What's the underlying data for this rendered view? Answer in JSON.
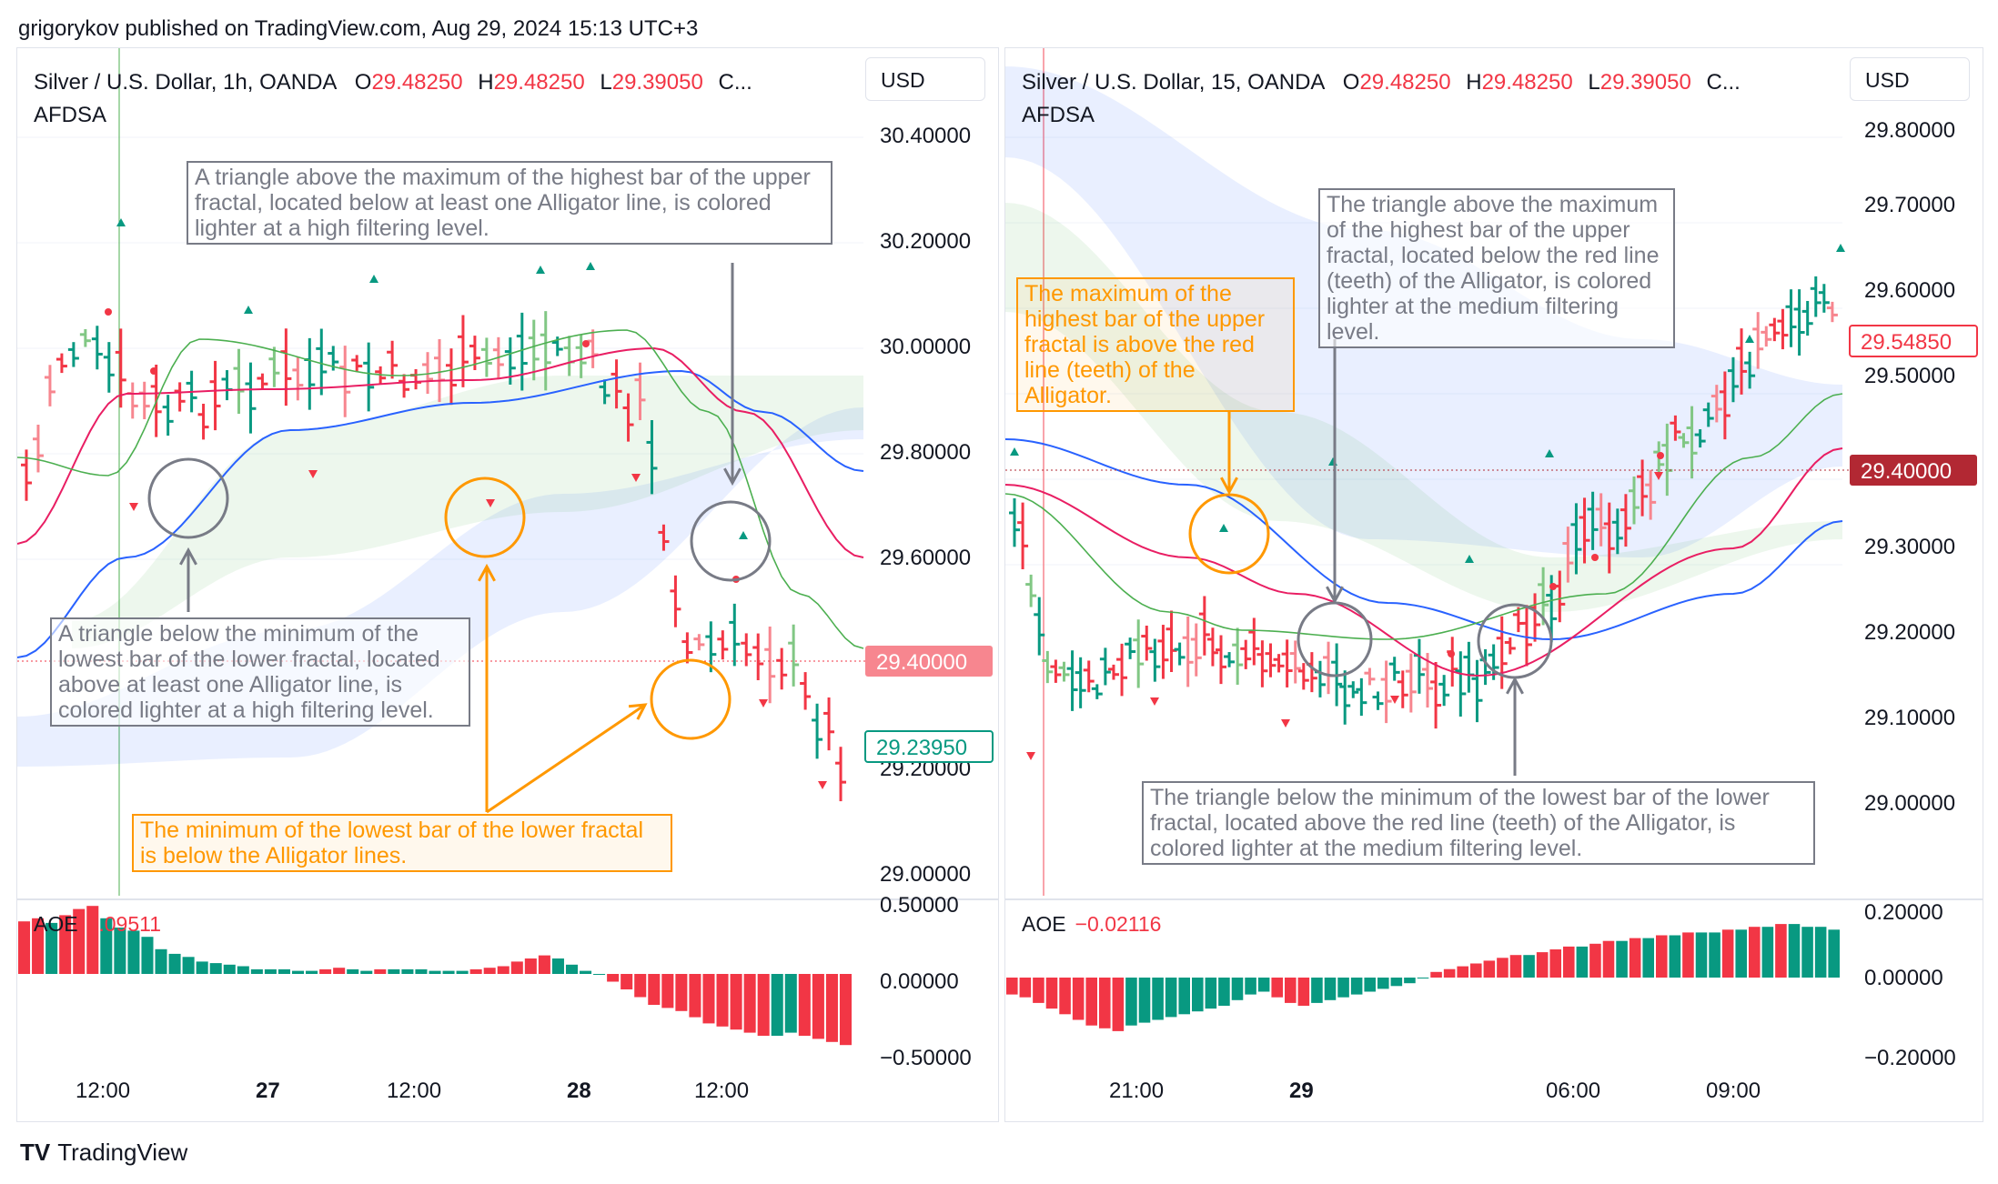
{
  "header": "grigorykov published on TradingView.com, Aug 29, 2024 15:13 UTC+3",
  "footer": {
    "logo_mark": "TV",
    "brand": "TradingView"
  },
  "colors": {
    "up": "#089981",
    "down": "#f23645",
    "jaw": "#2962ff",
    "teeth": "#e91e63",
    "lips": "#4caf50",
    "annotation_gray": "#787b86",
    "annotation_orange": "#ff9800"
  },
  "left": {
    "title": {
      "symbol": "Silver / U.S. Dollar, 1h, OANDA",
      "o_lbl": "O",
      "o": "29.48250",
      "h_lbl": "H",
      "h": "29.48250",
      "l_lbl": "L",
      "l": "29.39050",
      "c_lbl": "C...",
      "indicator": "AFDSA"
    },
    "currency": "USD",
    "price_axis": [
      "30.40000",
      "30.20000",
      "30.00000",
      "29.80000",
      "29.60000",
      "29.20000",
      "29.00000"
    ],
    "price_labels": {
      "last": "29.40000",
      "current": "29.23950"
    },
    "aoe": {
      "label": "AOE",
      "value": "0.09511",
      "axis": [
        "0.50000",
        "0.00000",
        "−0.50000"
      ]
    },
    "time_axis": [
      "12:00",
      "27",
      "12:00",
      "28",
      "12:00"
    ],
    "notes": {
      "n1": "A triangle above the maximum of the highest bar of the upper fractal, located below at least one Alligator line, is colored lighter at a high filtering level.",
      "n2": "A triangle below the minimum of the lowest bar of the lower fractal, located above at least one Alligator line, is colored lighter at a high filtering level.",
      "n3": "The minimum of the lowest bar of the lower fractal is below the Alligator lines."
    }
  },
  "right": {
    "title": {
      "symbol": "Silver / U.S. Dollar, 15, OANDA",
      "o_lbl": "O",
      "o": "29.48250",
      "h_lbl": "H",
      "h": "29.48250",
      "l_lbl": "L",
      "l": "29.39050",
      "c_lbl": "C...",
      "indicator": "AFDSA"
    },
    "currency": "USD",
    "price_axis": [
      "29.80000",
      "29.70000",
      "29.60000",
      "29.50000",
      "29.30000",
      "29.20000",
      "29.10000",
      "29.00000"
    ],
    "price_labels": {
      "current": "29.54850",
      "last": "29.40000"
    },
    "aoe": {
      "label": "AOE",
      "value": "−0.02116",
      "axis": [
        "0.20000",
        "0.00000",
        "−0.20000"
      ]
    },
    "time_axis": [
      "21:00",
      "29",
      "06:00",
      "09:00"
    ],
    "notes": {
      "n1": "The triangle above the maximum of the highest bar of the upper fractal, located below the red line (teeth) of the Alligator, is colored lighter at the medium filtering level.",
      "n2": "The maximum of the highest bar of the upper fractal is above the red line (teeth) of the Alligator.",
      "n3": "The triangle below the minimum of the lowest bar of the lower fractal, located above the red line (teeth) of the Alligator, is colored lighter at the medium filtering level."
    }
  }
}
